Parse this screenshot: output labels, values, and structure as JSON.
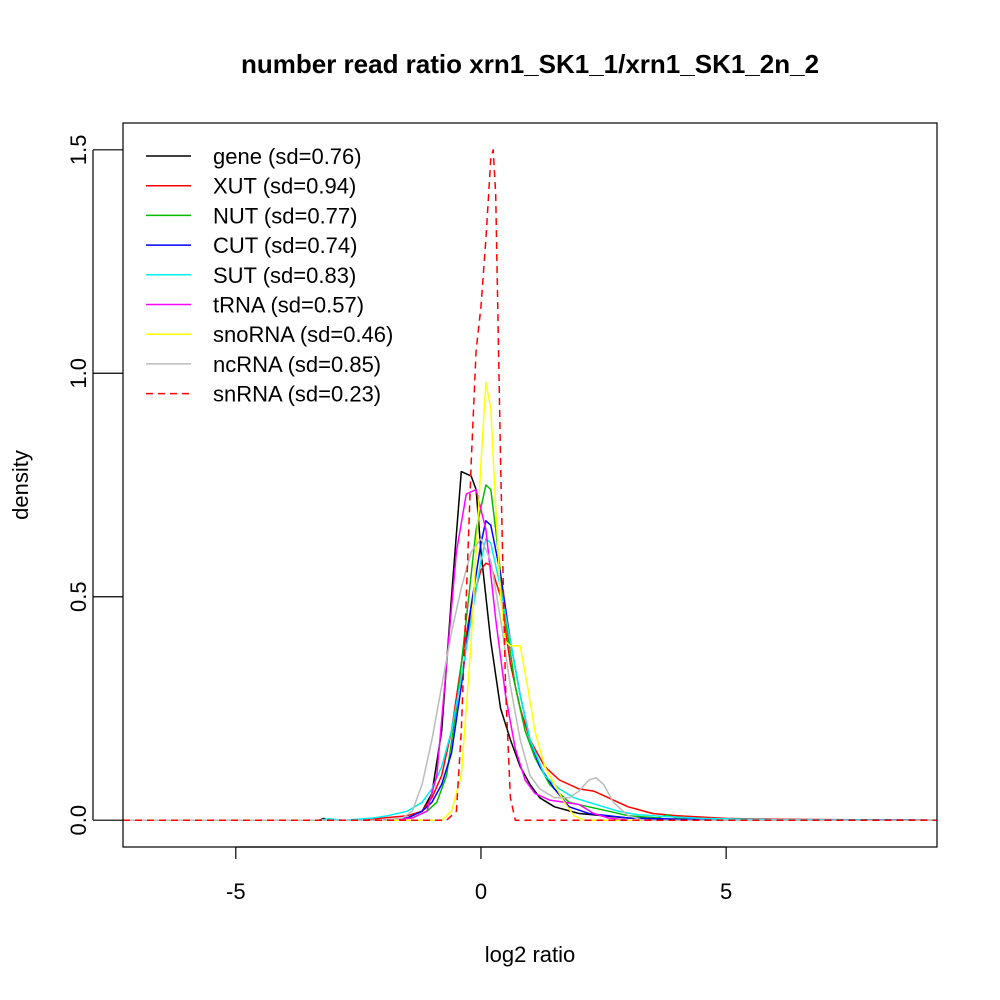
{
  "chart_data": {
    "type": "line",
    "title": "number read ratio xrn1_SK1_1/xrn1_SK1_2n_2",
    "xlabel": "log2 ratio",
    "ylabel": "density",
    "xlim": [
      -7.3,
      9.3
    ],
    "ylim": [
      -0.06,
      1.56
    ],
    "xticks": [
      -5,
      0,
      5
    ],
    "xtick_labels": [
      "-5",
      "0",
      "5"
    ],
    "yticks": [
      0.0,
      0.5,
      1.0,
      1.5
    ],
    "ytick_labels": [
      "0.0",
      "0.5",
      "1.0",
      "1.5"
    ],
    "grid": false,
    "legend_position": "top-left",
    "series": [
      {
        "name": "gene (sd=0.76)",
        "color": "#000000",
        "dash": "solid",
        "points": [
          [
            -7.3,
            0
          ],
          [
            -3.3,
            0
          ],
          [
            -3.2,
            0.004
          ],
          [
            -3.1,
            0
          ],
          [
            -2,
            0
          ],
          [
            -1.5,
            0.005
          ],
          [
            -1.2,
            0.02
          ],
          [
            -1.0,
            0.06
          ],
          [
            -0.8,
            0.2
          ],
          [
            -0.6,
            0.5
          ],
          [
            -0.4,
            0.78
          ],
          [
            -0.2,
            0.77
          ],
          [
            -0.1,
            0.74
          ],
          [
            0.0,
            0.6
          ],
          [
            0.2,
            0.4
          ],
          [
            0.4,
            0.25
          ],
          [
            0.6,
            0.18
          ],
          [
            0.8,
            0.12
          ],
          [
            1.0,
            0.08
          ],
          [
            1.2,
            0.05
          ],
          [
            1.5,
            0.03
          ],
          [
            2.0,
            0.015
          ],
          [
            2.5,
            0.01
          ],
          [
            3.0,
            0.005
          ],
          [
            4.0,
            0.002
          ],
          [
            9.3,
            0
          ]
        ]
      },
      {
        "name": "XUT (sd=0.94)",
        "color": "#ff0000",
        "dash": "solid",
        "points": [
          [
            -7.3,
            0
          ],
          [
            -2.5,
            0
          ],
          [
            -2.0,
            0.005
          ],
          [
            -1.5,
            0.01
          ],
          [
            -1.2,
            0.02
          ],
          [
            -1.0,
            0.05
          ],
          [
            -0.8,
            0.1
          ],
          [
            -0.6,
            0.2
          ],
          [
            -0.4,
            0.35
          ],
          [
            -0.2,
            0.48
          ],
          [
            0.0,
            0.56
          ],
          [
            0.1,
            0.575
          ],
          [
            0.2,
            0.57
          ],
          [
            0.4,
            0.5
          ],
          [
            0.6,
            0.35
          ],
          [
            0.8,
            0.25
          ],
          [
            1.0,
            0.18
          ],
          [
            1.3,
            0.12
          ],
          [
            1.6,
            0.09
          ],
          [
            2.0,
            0.07
          ],
          [
            2.3,
            0.065
          ],
          [
            2.6,
            0.05
          ],
          [
            3.0,
            0.03
          ],
          [
            3.5,
            0.015
          ],
          [
            4.0,
            0.01
          ],
          [
            5.0,
            0.004
          ],
          [
            6.0,
            0.002
          ],
          [
            9.3,
            0
          ]
        ]
      },
      {
        "name": "NUT (sd=0.77)",
        "color": "#00bb00",
        "dash": "solid",
        "points": [
          [
            -7.3,
            0
          ],
          [
            -2,
            0
          ],
          [
            -1.4,
            0.005
          ],
          [
            -1.1,
            0.02
          ],
          [
            -0.9,
            0.04
          ],
          [
            -0.7,
            0.1
          ],
          [
            -0.5,
            0.25
          ],
          [
            -0.3,
            0.45
          ],
          [
            -0.1,
            0.65
          ],
          [
            0.1,
            0.75
          ],
          [
            0.2,
            0.74
          ],
          [
            0.3,
            0.65
          ],
          [
            0.5,
            0.45
          ],
          [
            0.7,
            0.3
          ],
          [
            0.9,
            0.2
          ],
          [
            1.1,
            0.14
          ],
          [
            1.4,
            0.08
          ],
          [
            1.8,
            0.04
          ],
          [
            2.2,
            0.03
          ],
          [
            2.6,
            0.02
          ],
          [
            3.0,
            0.01
          ],
          [
            3.6,
            0.005
          ],
          [
            3.8,
            0.012
          ],
          [
            4.0,
            0.004
          ],
          [
            5.0,
            0.001
          ],
          [
            9.3,
            0
          ]
        ]
      },
      {
        "name": "CUT (sd=0.74)",
        "color": "#0000ff",
        "dash": "solid",
        "points": [
          [
            -7.3,
            0
          ],
          [
            -2,
            0
          ],
          [
            -1.5,
            0.005
          ],
          [
            -1.2,
            0.02
          ],
          [
            -1.0,
            0.04
          ],
          [
            -0.8,
            0.08
          ],
          [
            -0.6,
            0.15
          ],
          [
            -0.4,
            0.3
          ],
          [
            -0.2,
            0.48
          ],
          [
            0.0,
            0.62
          ],
          [
            0.1,
            0.67
          ],
          [
            0.2,
            0.66
          ],
          [
            0.4,
            0.55
          ],
          [
            0.6,
            0.4
          ],
          [
            0.8,
            0.28
          ],
          [
            1.0,
            0.18
          ],
          [
            1.2,
            0.12
          ],
          [
            1.5,
            0.07
          ],
          [
            1.8,
            0.03
          ],
          [
            2.2,
            0.015
          ],
          [
            2.6,
            0.01
          ],
          [
            3.0,
            0.005
          ],
          [
            4.0,
            0.002
          ],
          [
            6.0,
            0.001
          ],
          [
            9.3,
            0
          ]
        ]
      },
      {
        "name": "SUT (sd=0.83)",
        "color": "#00eeee",
        "dash": "solid",
        "points": [
          [
            -7.3,
            0
          ],
          [
            -3.3,
            0
          ],
          [
            -3.1,
            0.003
          ],
          [
            -2.8,
            0
          ],
          [
            -2.2,
            0.005
          ],
          [
            -1.9,
            0.01
          ],
          [
            -1.5,
            0.02
          ],
          [
            -1.2,
            0.04
          ],
          [
            -1.0,
            0.07
          ],
          [
            -0.8,
            0.12
          ],
          [
            -0.6,
            0.2
          ],
          [
            -0.4,
            0.32
          ],
          [
            -0.2,
            0.45
          ],
          [
            0.0,
            0.58
          ],
          [
            0.1,
            0.63
          ],
          [
            0.2,
            0.62
          ],
          [
            0.4,
            0.52
          ],
          [
            0.6,
            0.4
          ],
          [
            0.8,
            0.28
          ],
          [
            1.0,
            0.18
          ],
          [
            1.3,
            0.1
          ],
          [
            1.6,
            0.07
          ],
          [
            1.9,
            0.05
          ],
          [
            2.2,
            0.04
          ],
          [
            2.5,
            0.03
          ],
          [
            2.8,
            0.02
          ],
          [
            3.2,
            0.012
          ],
          [
            3.8,
            0.008
          ],
          [
            4.5,
            0.004
          ],
          [
            6.0,
            0.001
          ],
          [
            9.3,
            0
          ]
        ]
      },
      {
        "name": "tRNA (sd=0.57)",
        "color": "#ff00ff",
        "dash": "solid",
        "points": [
          [
            -7.3,
            0
          ],
          [
            -2,
            0
          ],
          [
            -1.4,
            0.005
          ],
          [
            -1.1,
            0.02
          ],
          [
            -0.9,
            0.1
          ],
          [
            -0.7,
            0.35
          ],
          [
            -0.5,
            0.6
          ],
          [
            -0.3,
            0.73
          ],
          [
            -0.1,
            0.74
          ],
          [
            0.1,
            0.65
          ],
          [
            0.3,
            0.45
          ],
          [
            0.5,
            0.28
          ],
          [
            0.7,
            0.16
          ],
          [
            0.9,
            0.09
          ],
          [
            1.1,
            0.06
          ],
          [
            1.4,
            0.045
          ],
          [
            1.7,
            0.04
          ],
          [
            2.0,
            0.035
          ],
          [
            2.3,
            0.015
          ],
          [
            2.6,
            0.005
          ],
          [
            3.0,
            0
          ],
          [
            9.3,
            0
          ]
        ]
      },
      {
        "name": "snoRNA (sd=0.46)",
        "color": "#ffff00",
        "dash": "solid",
        "points": [
          [
            -7.3,
            0
          ],
          [
            -0.8,
            0
          ],
          [
            -0.6,
            0.02
          ],
          [
            -0.4,
            0.1
          ],
          [
            -0.2,
            0.4
          ],
          [
            0.0,
            0.8
          ],
          [
            0.1,
            0.98
          ],
          [
            0.2,
            0.92
          ],
          [
            0.3,
            0.7
          ],
          [
            0.4,
            0.5
          ],
          [
            0.5,
            0.4
          ],
          [
            0.6,
            0.39
          ],
          [
            0.8,
            0.39
          ],
          [
            0.95,
            0.3
          ],
          [
            1.1,
            0.2
          ],
          [
            1.3,
            0.12
          ],
          [
            1.5,
            0.08
          ],
          [
            1.7,
            0.04
          ],
          [
            1.9,
            0.01
          ],
          [
            2.1,
            0
          ],
          [
            9.3,
            0
          ]
        ]
      },
      {
        "name": "ncRNA (sd=0.85)",
        "color": "#bbbbbb",
        "dash": "solid",
        "points": [
          [
            -7.3,
            0
          ],
          [
            -2,
            0
          ],
          [
            -1.6,
            0.005
          ],
          [
            -1.4,
            0.02
          ],
          [
            -1.2,
            0.08
          ],
          [
            -1.0,
            0.18
          ],
          [
            -0.8,
            0.3
          ],
          [
            -0.6,
            0.42
          ],
          [
            -0.4,
            0.52
          ],
          [
            -0.2,
            0.6
          ],
          [
            0.0,
            0.63
          ],
          [
            0.2,
            0.58
          ],
          [
            0.4,
            0.45
          ],
          [
            0.6,
            0.3
          ],
          [
            0.8,
            0.18
          ],
          [
            1.0,
            0.1
          ],
          [
            1.2,
            0.07
          ],
          [
            1.5,
            0.05
          ],
          [
            1.8,
            0.05
          ],
          [
            2.0,
            0.065
          ],
          [
            2.2,
            0.09
          ],
          [
            2.35,
            0.095
          ],
          [
            2.5,
            0.08
          ],
          [
            2.7,
            0.04
          ],
          [
            3.0,
            0.01
          ],
          [
            3.3,
            0
          ],
          [
            9.3,
            0
          ]
        ]
      },
      {
        "name": "snRNA (sd=0.23)",
        "color": "#ff0000",
        "dash": "dashed",
        "points": [
          [
            -7.3,
            0
          ],
          [
            -0.7,
            0
          ],
          [
            -0.5,
            0.02
          ],
          [
            -0.4,
            0.2
          ],
          [
            -0.3,
            0.5
          ],
          [
            -0.2,
            0.8
          ],
          [
            -0.1,
            1.05
          ],
          [
            0.0,
            1.15
          ],
          [
            0.1,
            1.3
          ],
          [
            0.2,
            1.48
          ],
          [
            0.25,
            1.5
          ],
          [
            0.3,
            1.4
          ],
          [
            0.4,
            0.8
          ],
          [
            0.5,
            0.3
          ],
          [
            0.6,
            0.05
          ],
          [
            0.7,
            0
          ],
          [
            9.3,
            0
          ]
        ]
      }
    ]
  }
}
